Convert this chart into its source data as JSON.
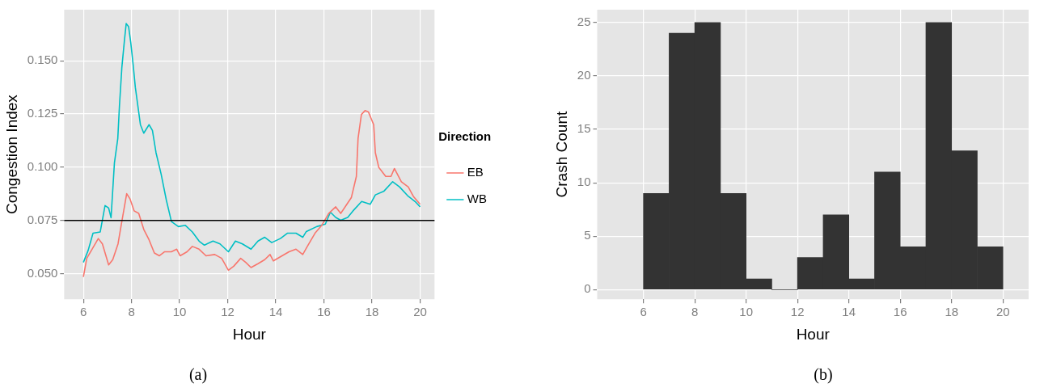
{
  "chart_data": [
    {
      "type": "line",
      "xlabel": "Hour",
      "ylabel": "Congestion Index",
      "legend_title": "Direction",
      "legend": "right",
      "marker": "none",
      "grid": true,
      "xlim": [
        5.2,
        20.6
      ],
      "xticks": [
        6,
        8,
        10,
        12,
        14,
        16,
        18,
        20
      ],
      "ylim": [
        0.038,
        0.174
      ],
      "yticks": [
        {
          "value": 0.05,
          "label": "0.050"
        },
        {
          "value": 0.075,
          "label": "0.075"
        },
        {
          "value": 0.1,
          "label": "0.100"
        },
        {
          "value": 0.125,
          "label": "0.125"
        },
        {
          "value": 0.15,
          "label": "0.150"
        }
      ],
      "ref_lines": [
        {
          "axis": "y",
          "value": 0.075,
          "color": "#000000"
        }
      ],
      "annotations": [
        "(a)"
      ],
      "series": [
        {
          "name": "EB",
          "color": "#f8766d",
          "x": [
            6.0,
            6.14,
            6.36,
            6.62,
            6.79,
            7.05,
            7.22,
            7.44,
            7.58,
            7.8,
            7.94,
            8.11,
            8.3,
            8.51,
            8.73,
            8.95,
            9.16,
            9.38,
            9.66,
            9.88,
            10.02,
            10.31,
            10.53,
            10.81,
            11.1,
            11.46,
            11.75,
            12.03,
            12.25,
            12.54,
            12.75,
            12.97,
            13.26,
            13.54,
            13.76,
            13.9,
            14.26,
            14.55,
            14.84,
            15.12,
            15.34,
            15.63,
            15.91,
            16.2,
            16.49,
            16.7,
            16.92,
            17.14,
            17.35,
            17.42,
            17.56,
            17.71,
            17.85,
            18.07,
            18.14,
            18.28,
            18.57,
            18.79,
            18.93,
            19.22,
            19.51,
            19.72,
            20.0
          ],
          "values": [
            0.0485,
            0.0572,
            0.0615,
            0.0665,
            0.064,
            0.0541,
            0.0566,
            0.064,
            0.0733,
            0.0876,
            0.0851,
            0.0795,
            0.0783,
            0.0708,
            0.0659,
            0.0597,
            0.0584,
            0.0603,
            0.0603,
            0.0615,
            0.0584,
            0.0603,
            0.0628,
            0.0615,
            0.0584,
            0.059,
            0.0572,
            0.0516,
            0.0535,
            0.0572,
            0.0553,
            0.0529,
            0.0547,
            0.0566,
            0.059,
            0.056,
            0.0584,
            0.0603,
            0.0615,
            0.059,
            0.0634,
            0.069,
            0.0727,
            0.0783,
            0.0814,
            0.0783,
            0.082,
            0.0857,
            0.0957,
            0.1135,
            0.1248,
            0.1266,
            0.126,
            0.12,
            0.1068,
            0.1,
            0.0957,
            0.0957,
            0.0994,
            0.0932,
            0.0907,
            0.0863,
            0.0826
          ]
        },
        {
          "name": "WB",
          "color": "#00bfc4",
          "x": [
            6.0,
            6.2,
            6.4,
            6.7,
            6.9,
            7.05,
            7.15,
            7.29,
            7.43,
            7.5,
            7.6,
            7.71,
            7.78,
            7.88,
            7.97,
            8.07,
            8.16,
            8.25,
            8.37,
            8.51,
            8.73,
            8.87,
            9.02,
            9.23,
            9.45,
            9.66,
            9.95,
            10.24,
            10.53,
            10.81,
            11.03,
            11.39,
            11.68,
            12.03,
            12.32,
            12.61,
            12.97,
            13.26,
            13.54,
            13.83,
            14.19,
            14.48,
            14.84,
            15.12,
            15.27,
            15.7,
            16.06,
            16.27,
            16.49,
            16.7,
            16.99,
            17.21,
            17.57,
            17.93,
            18.14,
            18.5,
            18.86,
            19.15,
            19.51,
            19.79,
            20.0
          ],
          "values": [
            0.0553,
            0.061,
            0.069,
            0.0696,
            0.082,
            0.0808,
            0.0763,
            0.102,
            0.1135,
            0.129,
            0.147,
            0.16,
            0.1675,
            0.166,
            0.1585,
            0.148,
            0.1375,
            0.13,
            0.12,
            0.116,
            0.12,
            0.1173,
            0.1068,
            0.0969,
            0.0845,
            0.0745,
            0.0721,
            0.0727,
            0.0696,
            0.0653,
            0.0634,
            0.0653,
            0.064,
            0.0603,
            0.0653,
            0.064,
            0.0615,
            0.0653,
            0.0671,
            0.0646,
            0.0665,
            0.069,
            0.069,
            0.0671,
            0.0698,
            0.0721,
            0.0733,
            0.0789,
            0.0764,
            0.0751,
            0.0764,
            0.0795,
            0.0839,
            0.0826,
            0.087,
            0.0888,
            0.0932,
            0.0907,
            0.0863,
            0.0839,
            0.0814
          ]
        }
      ]
    },
    {
      "type": "histogram",
      "xlabel": "Hour",
      "ylabel": "Crash Count",
      "color": "#333333",
      "grid": true,
      "bins": [
        6,
        7,
        8,
        9,
        10,
        11,
        12,
        13,
        14,
        15,
        16,
        17,
        18,
        19,
        20
      ],
      "values": [
        9,
        24,
        25,
        9,
        1,
        0,
        3,
        7,
        1,
        11,
        4,
        25,
        13,
        4
      ],
      "xlim": [
        4.2,
        21.0
      ],
      "xticks": [
        6,
        8,
        10,
        12,
        14,
        16,
        18,
        20
      ],
      "ylim": [
        -0.9,
        26.2
      ],
      "yticks": [
        0,
        5,
        10,
        15,
        20,
        25
      ],
      "annotations": [
        "(b)"
      ]
    }
  ]
}
